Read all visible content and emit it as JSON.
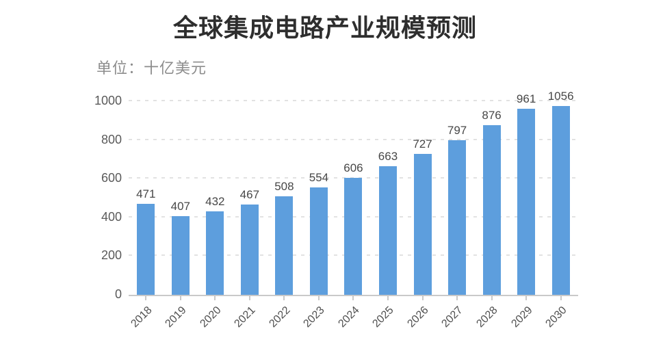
{
  "chart_data": {
    "type": "bar",
    "title": "全球集成电路产业规模预测",
    "unit_label": "单位：十亿美元",
    "categories": [
      "2018",
      "2019",
      "2020",
      "2021",
      "2022",
      "2023",
      "2024",
      "2025",
      "2026",
      "2027",
      "2028",
      "2029",
      "2030"
    ],
    "values": [
      471,
      407,
      432,
      467,
      508,
      554,
      606,
      663,
      727,
      797,
      876,
      961,
      1056
    ],
    "xlabel": "",
    "ylabel": "",
    "ylim": [
      0,
      1000
    ],
    "yticks": [
      0,
      200,
      400,
      600,
      800,
      1000
    ],
    "grid": "horizontal-dashed",
    "legend": "none",
    "x_tick_rotation_deg": 45,
    "colors": {
      "bar": "#5d9edd",
      "title_text": "#2e2e2e",
      "unit_text": "#8c8c8c",
      "value_label_text": "#474747",
      "axis_tick_text": "#5a5a5a",
      "gridline": "#e2e2e2",
      "axis_line": "#c9c9c9",
      "background": "#ffffff"
    }
  }
}
